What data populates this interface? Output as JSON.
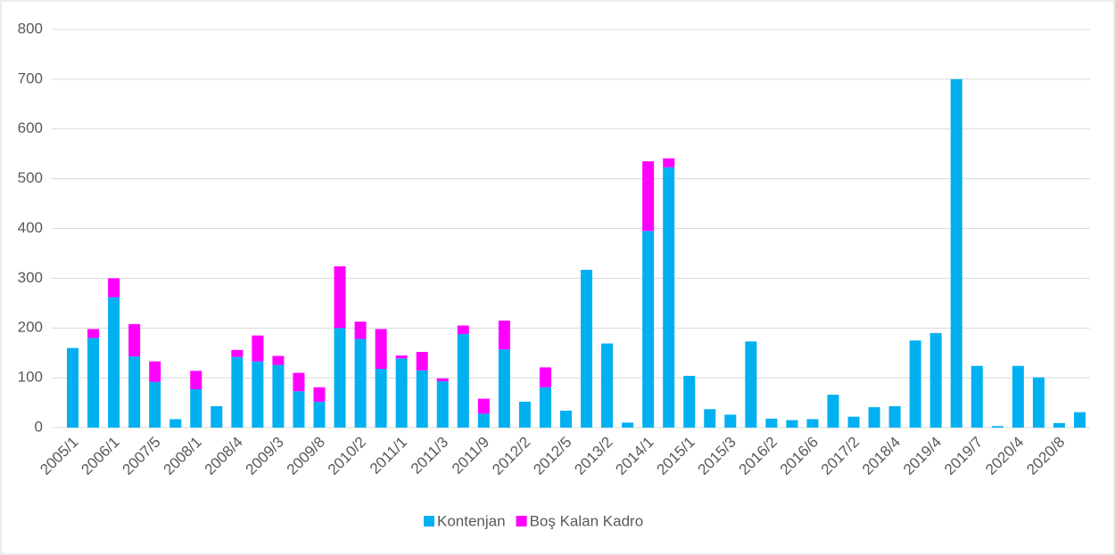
{
  "chart_data": {
    "type": "stacked_bar",
    "categories": [
      "2005/1",
      null,
      "2006/1",
      null,
      "2007/5",
      null,
      "2008/1",
      null,
      "2008/4",
      null,
      "2009/3",
      null,
      "2009/8",
      null,
      "2010/2",
      null,
      "2011/1",
      null,
      "2011/3",
      null,
      "2011/9",
      null,
      "2012/2",
      null,
      "2012/5",
      null,
      "2013/2",
      null,
      "2014/1",
      null,
      "2015/1",
      null,
      "2015/3",
      null,
      "2016/2",
      null,
      "2016/6",
      null,
      "2017/2",
      null,
      "2018/4",
      null,
      "2019/4",
      null,
      "2019/7",
      null,
      "2020/4",
      null,
      "2020/8",
      null
    ],
    "series": [
      {
        "name": "Kontenjan",
        "color": "#00b0f0",
        "values": [
          160,
          180,
          262,
          143,
          92,
          17,
          77,
          43,
          142,
          133,
          126,
          73,
          52,
          200,
          178,
          118,
          139,
          115,
          93,
          188,
          28,
          157,
          52,
          81,
          34,
          317,
          169,
          10,
          395,
          523,
          104,
          37,
          26,
          173,
          18,
          15,
          17,
          66,
          22,
          41,
          43,
          175,
          190,
          700,
          124,
          3,
          124,
          101,
          9,
          31
        ]
      },
      {
        "name": "Boş Kalan Kadro",
        "color": "#ff00ff",
        "values": [
          0,
          18,
          38,
          65,
          41,
          0,
          37,
          0,
          14,
          52,
          18,
          37,
          29,
          124,
          35,
          80,
          6,
          37,
          6,
          17,
          30,
          58,
          0,
          40,
          0,
          0,
          0,
          0,
          140,
          18,
          0,
          0,
          0,
          0,
          0,
          0,
          0,
          0,
          0,
          0,
          0,
          0,
          0,
          0,
          0,
          0,
          0,
          0,
          0,
          0
        ]
      }
    ],
    "ylim": [
      0,
      800
    ],
    "yticks": [
      0,
      100,
      200,
      300,
      400,
      500,
      600,
      700,
      800
    ],
    "grid": true,
    "legend": "bottom"
  }
}
